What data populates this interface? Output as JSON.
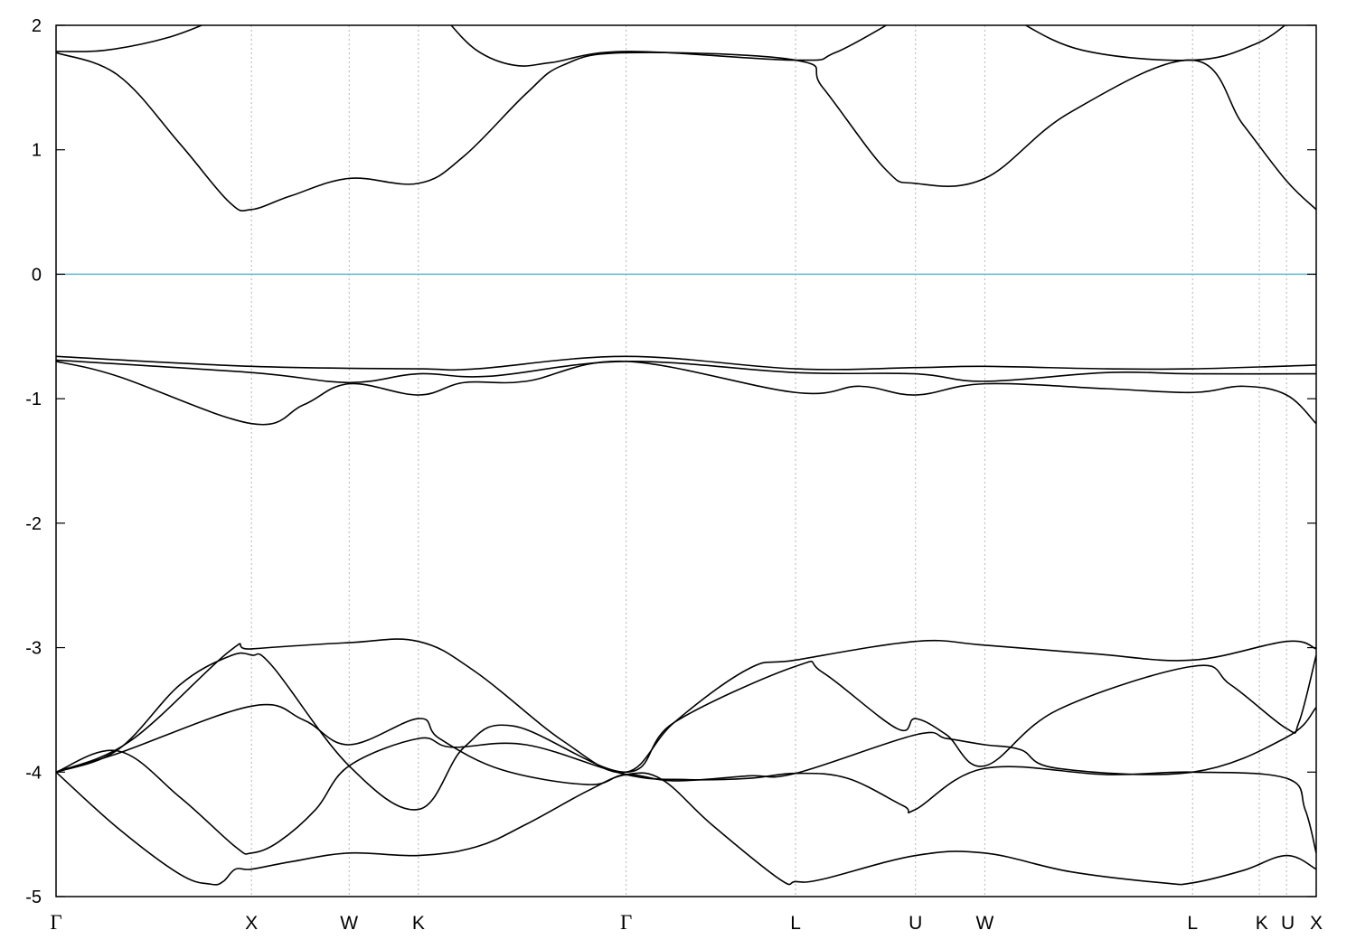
{
  "chart_data": {
    "type": "line",
    "title": "",
    "xlabel": "",
    "ylabel": "",
    "ylim": [
      -5,
      2
    ],
    "xlim": [
      0,
      10.19
    ],
    "grid": "vertical dashed lines at high-symmetry points",
    "legend": "none",
    "y_ticks": [
      "-5",
      "-4",
      "-3",
      "-2",
      "-1",
      "0",
      "1",
      "2"
    ],
    "y_tick_values": [
      -5,
      -4,
      -3,
      -2,
      -1,
      0,
      1,
      2
    ],
    "kpoints": [
      {
        "label": "Γ",
        "x": 0.0
      },
      {
        "label": "X",
        "x": 1.58
      },
      {
        "label": "W",
        "x": 2.37
      },
      {
        "label": "K",
        "x": 2.93
      },
      {
        "label": "Γ",
        "x": 4.61
      },
      {
        "label": "L",
        "x": 5.98
      },
      {
        "label": "U",
        "x": 6.95
      },
      {
        "label": "W",
        "x": 7.51
      },
      {
        "label": "L",
        "x": 9.19
      },
      {
        "label": "K",
        "x": 10.16
      },
      {
        "label": "U",
        "x": 10.35
      },
      {
        "label": "X",
        "x": 10.19
      }
    ],
    "fermi_level": 0,
    "colors": {
      "bands": "#000000",
      "fermi": "#62b6cc",
      "grid": "#b4b4b4"
    },
    "series": [
      {
        "values": [
          [
            0.0,
            -4.0
          ],
          [
            0.5,
            -4.45
          ],
          [
            1.0,
            -4.82
          ],
          [
            1.25,
            -4.9
          ],
          [
            1.35,
            -4.88
          ],
          [
            1.45,
            -4.78
          ],
          [
            1.58,
            -4.78
          ],
          [
            1.9,
            -4.72
          ],
          [
            2.37,
            -4.65
          ],
          [
            2.93,
            -4.67
          ],
          [
            3.4,
            -4.6
          ],
          [
            3.8,
            -4.42
          ],
          [
            4.3,
            -4.15
          ],
          [
            4.61,
            -4.02
          ],
          [
            4.9,
            -4.06
          ],
          [
            5.3,
            -4.42
          ],
          [
            5.85,
            -4.86
          ],
          [
            5.98,
            -4.88
          ],
          [
            6.2,
            -4.86
          ],
          [
            6.95,
            -4.67
          ],
          [
            7.51,
            -4.65
          ],
          [
            8.2,
            -4.8
          ],
          [
            8.95,
            -4.89
          ],
          [
            9.19,
            -4.89
          ],
          [
            9.6,
            -4.79
          ],
          [
            9.95,
            -4.67
          ],
          [
            10.19,
            -4.78
          ]
        ]
      },
      {
        "values": [
          [
            0.0,
            -4.0
          ],
          [
            0.5,
            -3.83
          ],
          [
            1.0,
            -4.2
          ],
          [
            1.45,
            -4.6
          ],
          [
            1.58,
            -4.65
          ],
          [
            1.8,
            -4.56
          ],
          [
            2.1,
            -4.3
          ],
          [
            2.37,
            -3.95
          ],
          [
            2.93,
            -3.73
          ],
          [
            3.2,
            -3.8
          ],
          [
            3.8,
            -3.78
          ],
          [
            4.61,
            -4.02
          ],
          [
            5.1,
            -4.06
          ],
          [
            5.6,
            -4.05
          ],
          [
            5.98,
            -4.01
          ],
          [
            6.4,
            -4.05
          ],
          [
            6.85,
            -4.27
          ],
          [
            6.95,
            -4.3
          ],
          [
            7.51,
            -3.97
          ],
          [
            8.5,
            -4.02
          ],
          [
            9.19,
            -4.0
          ],
          [
            9.95,
            -4.05
          ],
          [
            10.1,
            -4.3
          ],
          [
            10.19,
            -4.65
          ]
        ]
      },
      {
        "values": [
          [
            0.0,
            -4.0
          ],
          [
            0.5,
            -3.85
          ],
          [
            1.58,
            -3.47
          ],
          [
            2.0,
            -3.58
          ],
          [
            2.37,
            -3.78
          ],
          [
            2.93,
            -3.57
          ],
          [
            3.1,
            -3.73
          ],
          [
            3.6,
            -3.98
          ],
          [
            4.3,
            -4.1
          ],
          [
            4.61,
            -4.02
          ],
          [
            5.0,
            -4.07
          ],
          [
            5.6,
            -4.03
          ],
          [
            5.98,
            -4.01
          ],
          [
            6.95,
            -3.7
          ],
          [
            7.2,
            -3.73
          ],
          [
            7.51,
            -3.78
          ],
          [
            7.8,
            -3.82
          ],
          [
            8.1,
            -3.97
          ],
          [
            9.19,
            -4.0
          ],
          [
            9.95,
            -3.72
          ],
          [
            10.19,
            -3.48
          ]
        ]
      },
      {
        "values": [
          [
            0.0,
            -4.0
          ],
          [
            0.5,
            -3.82
          ],
          [
            1.0,
            -3.3
          ],
          [
            1.4,
            -3.07
          ],
          [
            1.58,
            -3.06
          ],
          [
            1.75,
            -3.15
          ],
          [
            2.37,
            -3.95
          ],
          [
            2.93,
            -4.3
          ],
          [
            3.3,
            -3.8
          ],
          [
            3.7,
            -3.63
          ],
          [
            4.61,
            -4.0
          ],
          [
            5.0,
            -3.6
          ],
          [
            5.98,
            -3.15
          ],
          [
            6.2,
            -3.2
          ],
          [
            6.8,
            -3.65
          ],
          [
            6.95,
            -3.57
          ],
          [
            7.2,
            -3.7
          ],
          [
            7.51,
            -3.95
          ],
          [
            8.1,
            -3.5
          ],
          [
            9.19,
            -3.15
          ],
          [
            9.5,
            -3.3
          ],
          [
            9.95,
            -3.65
          ],
          [
            10.05,
            -3.6
          ],
          [
            10.19,
            -3.06
          ]
        ]
      },
      {
        "values": [
          [
            0.0,
            -4.0
          ],
          [
            0.6,
            -3.75
          ],
          [
            1.4,
            -3.03
          ],
          [
            1.58,
            -3.01
          ],
          [
            2.37,
            -2.96
          ],
          [
            2.93,
            -2.95
          ],
          [
            3.4,
            -3.2
          ],
          [
            4.1,
            -3.75
          ],
          [
            4.61,
            -4.0
          ],
          [
            5.0,
            -3.6
          ],
          [
            5.6,
            -3.17
          ],
          [
            5.98,
            -3.1
          ],
          [
            6.95,
            -2.95
          ],
          [
            7.51,
            -2.98
          ],
          [
            8.4,
            -3.05
          ],
          [
            9.19,
            -3.1
          ],
          [
            9.95,
            -2.95
          ],
          [
            10.19,
            -3.01
          ]
        ]
      },
      {
        "values": [
          [
            0.0,
            -0.7
          ],
          [
            0.5,
            -0.82
          ],
          [
            1.58,
            -1.2
          ],
          [
            2.0,
            -1.05
          ],
          [
            2.37,
            -0.88
          ],
          [
            2.93,
            -0.97
          ],
          [
            3.3,
            -0.87
          ],
          [
            3.8,
            -0.86
          ],
          [
            4.61,
            -0.7
          ],
          [
            5.98,
            -0.95
          ],
          [
            6.5,
            -0.9
          ],
          [
            6.95,
            -0.97
          ],
          [
            7.51,
            -0.88
          ],
          [
            8.5,
            -0.92
          ],
          [
            9.19,
            -0.95
          ],
          [
            9.6,
            -0.9
          ],
          [
            9.95,
            -0.97
          ],
          [
            10.19,
            -1.2
          ]
        ]
      },
      {
        "values": [
          [
            0.0,
            -0.69
          ],
          [
            1.58,
            -0.79
          ],
          [
            2.37,
            -0.87
          ],
          [
            2.93,
            -0.8
          ],
          [
            3.5,
            -0.82
          ],
          [
            4.61,
            -0.7
          ],
          [
            5.98,
            -0.79
          ],
          [
            6.95,
            -0.8
          ],
          [
            7.51,
            -0.86
          ],
          [
            8.5,
            -0.79
          ],
          [
            9.19,
            -0.8
          ],
          [
            10.19,
            -0.8
          ]
        ]
      },
      {
        "values": [
          [
            0.0,
            -0.66
          ],
          [
            1.58,
            -0.74
          ],
          [
            2.93,
            -0.76
          ],
          [
            3.4,
            -0.76
          ],
          [
            4.61,
            -0.66
          ],
          [
            5.98,
            -0.76
          ],
          [
            6.95,
            -0.75
          ],
          [
            7.51,
            -0.74
          ],
          [
            8.5,
            -0.76
          ],
          [
            9.19,
            -0.76
          ],
          [
            10.19,
            -0.73
          ]
        ]
      },
      {
        "values": [
          [
            0.0,
            1.78
          ],
          [
            0.5,
            1.6
          ],
          [
            1.0,
            1.05
          ],
          [
            1.4,
            0.58
          ],
          [
            1.58,
            0.52
          ],
          [
            1.9,
            0.63
          ],
          [
            2.37,
            0.77
          ],
          [
            2.93,
            0.73
          ],
          [
            3.3,
            0.95
          ],
          [
            3.8,
            1.45
          ],
          [
            4.1,
            1.68
          ],
          [
            4.61,
            1.78
          ],
          [
            5.98,
            1.72
          ],
          [
            6.2,
            1.5
          ],
          [
            6.7,
            0.85
          ],
          [
            6.95,
            0.73
          ],
          [
            7.51,
            0.77
          ],
          [
            8.2,
            1.3
          ],
          [
            9.19,
            1.72
          ],
          [
            9.6,
            1.2
          ],
          [
            9.95,
            0.75
          ],
          [
            10.19,
            0.52
          ]
        ]
      },
      {
        "values": [
          [
            0.0,
            1.79
          ],
          [
            0.4,
            1.8
          ],
          [
            0.9,
            1.9
          ],
          [
            1.3,
            2.05
          ]
        ]
      },
      {
        "values": [
          [
            3.15,
            2.05
          ],
          [
            3.4,
            1.8
          ],
          [
            3.7,
            1.68
          ],
          [
            4.0,
            1.7
          ],
          [
            4.61,
            1.79
          ],
          [
            5.98,
            1.72
          ],
          [
            6.3,
            1.78
          ],
          [
            6.8,
            2.05
          ]
        ]
      },
      {
        "values": [
          [
            7.75,
            2.05
          ],
          [
            8.3,
            1.8
          ],
          [
            9.19,
            1.72
          ],
          [
            9.7,
            1.85
          ],
          [
            10.0,
            2.05
          ]
        ]
      }
    ]
  }
}
